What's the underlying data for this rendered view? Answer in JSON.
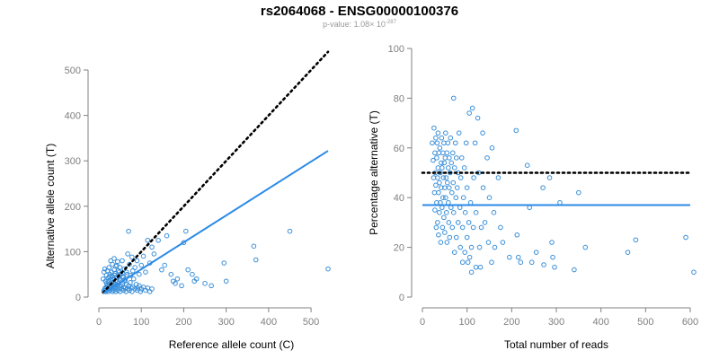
{
  "header": {
    "title": "rs2064068 - ENSG00000100376",
    "pvalue_prefix": "p-value: 1.08× 10",
    "pvalue_exponent": "-287"
  },
  "colors": {
    "points": "#3a8fd8",
    "fit_line": "#2b8ae6",
    "reference_line": "#000000",
    "axis": "#808080"
  },
  "chart_data": [
    {
      "type": "scatter",
      "xlabel": "Reference allele count (C)",
      "ylabel": "Alternative allele count (T)",
      "xlim": [
        0,
        540
      ],
      "ylim": [
        0,
        500
      ],
      "xticks": [
        0,
        100,
        200,
        300,
        400,
        500
      ],
      "yticks": [
        0,
        100,
        200,
        300,
        400,
        500
      ],
      "reference_line": {
        "style": "dotted",
        "x": [
          10,
          540
        ],
        "y": [
          10,
          540
        ]
      },
      "fit_line": {
        "style": "solid",
        "x": [
          10,
          540
        ],
        "y": [
          8,
          322
        ]
      },
      "points": [
        [
          12,
          14
        ],
        [
          14,
          18
        ],
        [
          15,
          20
        ],
        [
          16,
          12
        ],
        [
          18,
          22
        ],
        [
          18,
          30
        ],
        [
          20,
          16
        ],
        [
          20,
          25
        ],
        [
          22,
          12
        ],
        [
          22,
          35
        ],
        [
          24,
          20
        ],
        [
          25,
          28
        ],
        [
          25,
          45
        ],
        [
          26,
          15
        ],
        [
          28,
          22
        ],
        [
          28,
          38
        ],
        [
          30,
          18
        ],
        [
          30,
          30
        ],
        [
          30,
          55
        ],
        [
          32,
          12
        ],
        [
          32,
          25
        ],
        [
          33,
          40
        ],
        [
          34,
          20
        ],
        [
          35,
          15
        ],
        [
          35,
          32
        ],
        [
          36,
          60
        ],
        [
          38,
          22
        ],
        [
          38,
          48
        ],
        [
          40,
          12
        ],
        [
          40,
          28
        ],
        [
          40,
          35
        ],
        [
          42,
          18
        ],
        [
          42,
          70
        ],
        [
          44,
          25
        ],
        [
          44,
          42
        ],
        [
          45,
          15
        ],
        [
          46,
          30
        ],
        [
          48,
          20
        ],
        [
          48,
          55
        ],
        [
          50,
          12
        ],
        [
          50,
          38
        ],
        [
          52,
          25
        ],
        [
          54,
          18
        ],
        [
          55,
          45
        ],
        [
          56,
          30
        ],
        [
          58,
          15
        ],
        [
          58,
          22
        ],
        [
          60,
          35
        ],
        [
          62,
          20
        ],
        [
          64,
          12
        ],
        [
          65,
          28
        ],
        [
          66,
          50
        ],
        [
          68,
          18
        ],
        [
          70,
          25
        ],
        [
          72,
          15
        ],
        [
          74,
          32
        ],
        [
          76,
          20
        ],
        [
          78,
          12
        ],
        [
          80,
          22
        ],
        [
          82,
          40
        ],
        [
          85,
          18
        ],
        [
          88,
          28
        ],
        [
          90,
          15
        ],
        [
          92,
          20
        ],
        [
          95,
          25
        ],
        [
          98,
          12
        ],
        [
          100,
          18
        ],
        [
          105,
          22
        ],
        [
          110,
          15
        ],
        [
          115,
          20
        ],
        [
          120,
          12
        ],
        [
          125,
          18
        ],
        [
          10,
          40
        ],
        [
          12,
          55
        ],
        [
          14,
          62
        ],
        [
          16,
          35
        ],
        [
          18,
          48
        ],
        [
          20,
          58
        ],
        [
          22,
          42
        ],
        [
          24,
          65
        ],
        [
          26,
          50
        ],
        [
          28,
          80
        ],
        [
          30,
          45
        ],
        [
          32,
          72
        ],
        [
          34,
          38
        ],
        [
          36,
          85
        ],
        [
          38,
          52
        ],
        [
          40,
          68
        ],
        [
          42,
          45
        ],
        [
          44,
          78
        ],
        [
          46,
          58
        ],
        [
          48,
          40
        ],
        [
          50,
          65
        ],
        [
          52,
          50
        ],
        [
          55,
          80
        ],
        [
          58,
          45
        ],
        [
          60,
          62
        ],
        [
          62,
          38
        ],
        [
          65,
          55
        ],
        [
          68,
          95
        ],
        [
          70,
          145
        ],
        [
          72,
          72
        ],
        [
          75,
          48
        ],
        [
          78,
          88
        ],
        [
          80,
          58
        ],
        [
          85,
          65
        ],
        [
          90,
          80
        ],
        [
          95,
          50
        ],
        [
          100,
          70
        ],
        [
          105,
          90
        ],
        [
          110,
          55
        ],
        [
          115,
          125
        ],
        [
          120,
          75
        ],
        [
          125,
          110
        ],
        [
          130,
          95
        ],
        [
          140,
          125
        ],
        [
          148,
          60
        ],
        [
          155,
          70
        ],
        [
          160,
          135
        ],
        [
          170,
          50
        ],
        [
          175,
          35
        ],
        [
          180,
          30
        ],
        [
          185,
          40
        ],
        [
          195,
          25
        ],
        [
          200,
          120
        ],
        [
          205,
          145
        ],
        [
          210,
          60
        ],
        [
          220,
          50
        ],
        [
          225,
          35
        ],
        [
          230,
          40
        ],
        [
          250,
          30
        ],
        [
          265,
          25
        ],
        [
          295,
          75
        ],
        [
          300,
          35
        ],
        [
          365,
          112
        ],
        [
          370,
          82
        ],
        [
          450,
          145
        ],
        [
          540,
          62
        ]
      ]
    },
    {
      "type": "scatter",
      "xlabel": "Total number of reads",
      "ylabel": "Percentage alternative (T)",
      "xlim": [
        0,
        600
      ],
      "ylim": [
        0,
        100
      ],
      "xticks": [
        0,
        100,
        200,
        300,
        400,
        500,
        600
      ],
      "yticks": [
        0,
        20,
        40,
        60,
        80,
        100
      ],
      "reference_line": {
        "style": "dotted",
        "y": 50
      },
      "fit_line": {
        "style": "solid",
        "y": 37
      },
      "points": [
        [
          22,
          62
        ],
        [
          24,
          55
        ],
        [
          25,
          48
        ],
        [
          26,
          68
        ],
        [
          27,
          42
        ],
        [
          28,
          58
        ],
        [
          28,
          35
        ],
        [
          29,
          50
        ],
        [
          30,
          64
        ],
        [
          30,
          45
        ],
        [
          31,
          28
        ],
        [
          32,
          56
        ],
        [
          32,
          38
        ],
        [
          33,
          62
        ],
        [
          34,
          48
        ],
        [
          34,
          30
        ],
        [
          35,
          52
        ],
        [
          35,
          66
        ],
        [
          36,
          42
        ],
        [
          36,
          25
        ],
        [
          37,
          58
        ],
        [
          38,
          46
        ],
        [
          38,
          34
        ],
        [
          39,
          60
        ],
        [
          40,
          50
        ],
        [
          40,
          38
        ],
        [
          41,
          22
        ],
        [
          42,
          54
        ],
        [
          42,
          44
        ],
        [
          43,
          64
        ],
        [
          44,
          36
        ],
        [
          44,
          52
        ],
        [
          45,
          28
        ],
        [
          46,
          58
        ],
        [
          46,
          40
        ],
        [
          47,
          48
        ],
        [
          48,
          62
        ],
        [
          48,
          32
        ],
        [
          49,
          54
        ],
        [
          50,
          44
        ],
        [
          50,
          26
        ],
        [
          51,
          56
        ],
        [
          52,
          40
        ],
        [
          52,
          66
        ],
        [
          53,
          48
        ],
        [
          54,
          34
        ],
        [
          55,
          58
        ],
        [
          55,
          22
        ],
        [
          56,
          46
        ],
        [
          57,
          62
        ],
        [
          58,
          38
        ],
        [
          58,
          52
        ],
        [
          59,
          30
        ],
        [
          60,
          56
        ],
        [
          60,
          44
        ],
        [
          61,
          24
        ],
        [
          62,
          50
        ],
        [
          63,
          64
        ],
        [
          64,
          36
        ],
        [
          65,
          54
        ],
        [
          66,
          42
        ],
        [
          67,
          28
        ],
        [
          68,
          58
        ],
        [
          69,
          46
        ],
        [
          70,
          80
        ],
        [
          70,
          34
        ],
        [
          72,
          52
        ],
        [
          72,
          18
        ],
        [
          74,
          62
        ],
        [
          75,
          40
        ],
        [
          76,
          56
        ],
        [
          76,
          24
        ],
        [
          78,
          44
        ],
        [
          80,
          30
        ],
        [
          80,
          50
        ],
        [
          82,
          66
        ],
        [
          84,
          36
        ],
        [
          85,
          20
        ],
        [
          86,
          48
        ],
        [
          88,
          56
        ],
        [
          90,
          28
        ],
        [
          90,
          14
        ],
        [
          92,
          40
        ],
        [
          94,
          52
        ],
        [
          95,
          18
        ],
        [
          96,
          34
        ],
        [
          98,
          62
        ],
        [
          100,
          24
        ],
        [
          100,
          44
        ],
        [
          102,
          14
        ],
        [
          104,
          30
        ],
        [
          105,
          74
        ],
        [
          106,
          16
        ],
        [
          108,
          38
        ],
        [
          110,
          20
        ],
        [
          110,
          10
        ],
        [
          112,
          76
        ],
        [
          114,
          28
        ],
        [
          115,
          48
        ],
        [
          118,
          62
        ],
        [
          120,
          12
        ],
        [
          120,
          34
        ],
        [
          124,
          72
        ],
        [
          126,
          50
        ],
        [
          128,
          20
        ],
        [
          130,
          12
        ],
        [
          132,
          28
        ],
        [
          135,
          66
        ],
        [
          136,
          44
        ],
        [
          140,
          30
        ],
        [
          145,
          56
        ],
        [
          148,
          22
        ],
        [
          150,
          40
        ],
        [
          155,
          14
        ],
        [
          156,
          60
        ],
        [
          160,
          34
        ],
        [
          162,
          20
        ],
        [
          170,
          48
        ],
        [
          175,
          28
        ],
        [
          180,
          22
        ],
        [
          195,
          16
        ],
        [
          210,
          67
        ],
        [
          212,
          25
        ],
        [
          215,
          16
        ],
        [
          220,
          14
        ],
        [
          235,
          53
        ],
        [
          240,
          36
        ],
        [
          245,
          14
        ],
        [
          255,
          18
        ],
        [
          270,
          44
        ],
        [
          272,
          13
        ],
        [
          285,
          48
        ],
        [
          290,
          22
        ],
        [
          292,
          16
        ],
        [
          296,
          12
        ],
        [
          308,
          38
        ],
        [
          340,
          11
        ],
        [
          350,
          42
        ],
        [
          365,
          20
        ],
        [
          460,
          18
        ],
        [
          478,
          23
        ],
        [
          590,
          24
        ],
        [
          608,
          10
        ]
      ]
    }
  ]
}
